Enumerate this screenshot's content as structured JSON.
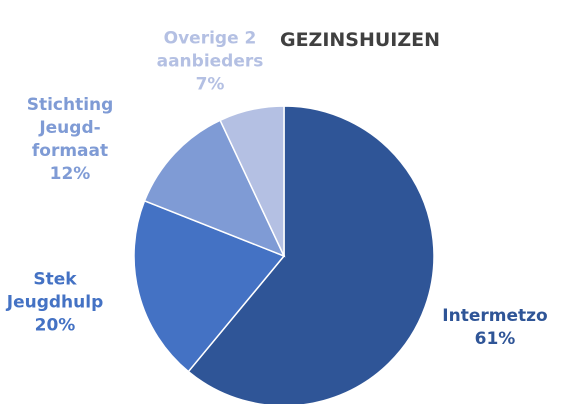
{
  "chart_data": {
    "type": "pie",
    "title": "GEZINSHUIZEN",
    "categories": [
      "Intermetzo",
      "Stek\nJeugdhulp",
      "Stichting\nJeugd-\nformaat",
      "Overige 2\naanbieders"
    ],
    "values": [
      61,
      20,
      12,
      7
    ],
    "value_labels": [
      "61%",
      "20%",
      "12%",
      "7%"
    ],
    "colors": [
      "#2f5597",
      "#4472c4",
      "#7f9bd5",
      "#b4c0e3"
    ]
  }
}
